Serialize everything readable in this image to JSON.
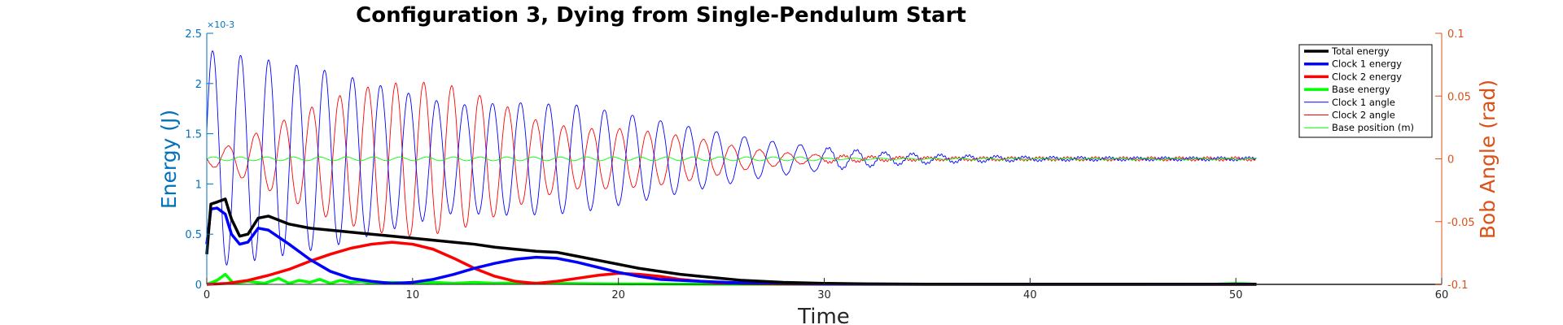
{
  "chart_data": {
    "type": "line",
    "title": "Configuration 3, Dying from Single-Pendulum Start",
    "xlabel": "Time",
    "ylabel_left": "Energy (J)",
    "ylabel_right": "Bob Angle (rad)",
    "left_exponent": "×10-3",
    "xlim": [
      0,
      60
    ],
    "ylim_left": [
      0,
      0.0025
    ],
    "ylim_right": [
      -0.1,
      0.1
    ],
    "x_ticks": [
      "0",
      "10",
      "20",
      "30",
      "40",
      "50",
      "60"
    ],
    "left_ticks": [
      "0",
      "0.5",
      "1",
      "1.5",
      "2",
      "2.5"
    ],
    "right_ticks": [
      "-0.1",
      "-0.05",
      "0",
      "0.05",
      "0.1"
    ],
    "colors": {
      "left_axis": "#0072bd",
      "right_axis": "#d95319",
      "total": "#000000",
      "clock1": "#0000ff",
      "clock2": "#ff0000",
      "base": "#00ff00"
    },
    "series": [
      {
        "name": "Total energy",
        "axis": "left",
        "color": "#000000",
        "width": 3.5,
        "x": [
          0,
          0.2,
          0.5,
          0.9,
          1.2,
          1.6,
          2.0,
          2.5,
          3.0,
          4.0,
          5.0,
          6.0,
          7.0,
          8.0,
          9.0,
          10.0,
          11.0,
          12.0,
          13.0,
          14.0,
          15.0,
          16.0,
          17.0,
          18.0,
          19.0,
          20.0,
          21.0,
          22.0,
          23.0,
          24.0,
          25.0,
          26.0,
          27.0,
          28.0,
          30.0,
          32.0,
          35.0,
          40.0,
          45.0,
          50.0,
          51.0
        ],
        "y": [
          0.0003,
          0.0008,
          0.00082,
          0.00085,
          0.00065,
          0.00048,
          0.0005,
          0.00066,
          0.00068,
          0.0006,
          0.00056,
          0.00054,
          0.00052,
          0.0005,
          0.00048,
          0.00046,
          0.00044,
          0.00042,
          0.0004,
          0.00037,
          0.00035,
          0.00033,
          0.00032,
          0.00028,
          0.00024,
          0.0002,
          0.00016,
          0.00013,
          0.0001,
          8e-05,
          6e-05,
          4e-05,
          3e-05,
          2e-05,
          1e-05,
          5e-06,
          2e-06,
          1e-06,
          1e-06,
          1e-06,
          1e-06
        ]
      },
      {
        "name": "Clock 1 energy",
        "axis": "left",
        "color": "#0000ff",
        "width": 3.5,
        "x": [
          0,
          0.2,
          0.5,
          0.9,
          1.2,
          1.6,
          2.0,
          2.5,
          3.0,
          4.0,
          5.0,
          6.0,
          7.0,
          8.0,
          9.0,
          10.0,
          11.0,
          12.0,
          13.0,
          14.0,
          15.0,
          16.0,
          17.0,
          18.0,
          19.0,
          20.0,
          21.0,
          22.0,
          24.0,
          26.0,
          28.0,
          30.0,
          35.0,
          40.0,
          45.0,
          50.0,
          51.0
        ],
        "y": [
          0.0004,
          0.00075,
          0.00076,
          0.0007,
          0.0005,
          0.0004,
          0.00042,
          0.00056,
          0.00054,
          0.0004,
          0.00025,
          0.00013,
          6e-05,
          3e-05,
          1e-05,
          2e-05,
          5e-05,
          0.0001,
          0.00016,
          0.00021,
          0.00025,
          0.00027,
          0.00026,
          0.00022,
          0.00017,
          0.00012,
          8e-05,
          5e-05,
          3e-05,
          1.5e-05,
          8e-06,
          4e-06,
          1e-06,
          1e-06,
          1e-06,
          1e-06,
          1e-06
        ]
      },
      {
        "name": "Clock 2 energy",
        "axis": "left",
        "color": "#ff0000",
        "width": 3.5,
        "x": [
          0,
          1.0,
          2.0,
          3.0,
          4.0,
          5.0,
          6.0,
          7.0,
          8.0,
          9.0,
          10.0,
          11.0,
          12.0,
          13.0,
          14.0,
          15.0,
          16.0,
          17.0,
          18.0,
          19.0,
          20.0,
          21.0,
          22.0,
          23.0,
          24.0,
          25.0,
          26.0,
          28.0,
          30.0,
          35.0,
          40.0,
          45.0,
          50.0,
          51.0
        ],
        "y": [
          0,
          1e-05,
          4e-05,
          9e-05,
          0.00015,
          0.00023,
          0.0003,
          0.00036,
          0.0004,
          0.00042,
          0.0004,
          0.00035,
          0.00026,
          0.00016,
          8e-05,
          3e-05,
          1e-05,
          3e-05,
          6e-05,
          9e-05,
          0.00011,
          0.0001,
          8e-05,
          5e-05,
          3e-05,
          1.5e-05,
          8e-06,
          4e-06,
          2e-06,
          1e-06,
          1e-06,
          1e-06,
          1e-06,
          1e-06
        ]
      },
      {
        "name": "Base energy",
        "axis": "left",
        "color": "#00ff00",
        "width": 3.5,
        "x": [
          0,
          0.5,
          0.9,
          1.3,
          2.0,
          2.8,
          3.5,
          4.0,
          4.5,
          5.0,
          5.5,
          6.0,
          6.5,
          7.0,
          7.5,
          8.0,
          9.0,
          10.0,
          11.0,
          12.0,
          13.0,
          14.0,
          15.0,
          17.0,
          20.0,
          25.0,
          30.0,
          35.0,
          40.0,
          45.0,
          49.0,
          50.0,
          51.0
        ],
        "y": [
          0,
          4e-05,
          0.0001,
          1e-05,
          3e-05,
          1e-05,
          6e-05,
          1e-05,
          4e-05,
          2e-05,
          5e-05,
          1e-05,
          4e-05,
          2e-05,
          3e-05,
          1e-05,
          2e-05,
          1e-05,
          2e-05,
          1e-05,
          2e-05,
          1e-05,
          1.5e-05,
          1e-05,
          5e-06,
          2e-06,
          1e-06,
          1e-06,
          1e-06,
          1e-06,
          2e-06,
          8e-06,
          2e-06
        ]
      }
    ],
    "angle_series": [
      {
        "name": "Clock 1 angle",
        "axis": "right",
        "color": "#0000ff",
        "width": 0.9
      },
      {
        "name": "Clock 2 angle",
        "axis": "right",
        "color": "#ff0000",
        "width": 0.9
      },
      {
        "name": "Base position (m)",
        "axis": "right",
        "color": "#00ff00",
        "width": 0.9
      }
    ],
    "angle_model": {
      "period": 1.36,
      "x_end": 51.0,
      "clock1_peaks": {
        "x": [
          0,
          3,
          6,
          9,
          12,
          15,
          18,
          21,
          24,
          27,
          30,
          33,
          36,
          40,
          45,
          51
        ],
        "amp": [
          0.087,
          0.079,
          0.07,
          0.056,
          0.043,
          0.045,
          0.043,
          0.034,
          0.024,
          0.015,
          0.009,
          0.005,
          0.003,
          0.0015,
          0.001,
          0.001
        ]
      },
      "clock2_peaks": {
        "x": [
          0,
          1,
          3,
          6,
          8,
          10,
          12,
          14,
          16,
          18,
          20,
          22,
          24,
          26,
          28,
          30,
          33,
          36,
          40,
          45,
          51
        ],
        "amp": [
          0.005,
          0.01,
          0.025,
          0.048,
          0.058,
          0.062,
          0.058,
          0.046,
          0.031,
          0.024,
          0.024,
          0.021,
          0.016,
          0.009,
          0.005,
          0.003,
          0.0015,
          0.001,
          0.001,
          0.001,
          0.001
        ]
      },
      "base_amp": 0.0015
    },
    "legend": {
      "position": "top-right",
      "entries": [
        "Total energy",
        "Clock 1 energy",
        "Clock 2 energy",
        "Base energy",
        "Clock 1 angle",
        "Clock 2 angle",
        "Base position (m)"
      ]
    }
  }
}
